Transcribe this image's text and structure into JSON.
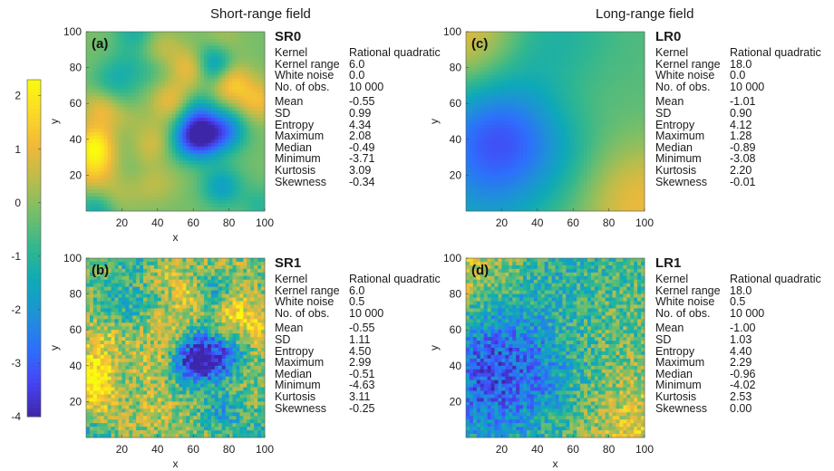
{
  "column_titles": {
    "left": "Short-range field",
    "right": "Long-range field"
  },
  "colormap": {
    "name": "parula",
    "stops": [
      "#3e26a8",
      "#4743f4",
      "#2d6ffc",
      "#1e91d7",
      "#0ea9b8",
      "#31b78f",
      "#73be6b",
      "#b7bd4c",
      "#f0b83a",
      "#fbd926",
      "#f9fb0e"
    ]
  },
  "chart_data": [
    {
      "type": "heatmap",
      "panel_label": "(a)",
      "code": "SR0",
      "xlabel": "x",
      "ylabel": "y",
      "xlim": [
        0,
        100
      ],
      "ylim": [
        0,
        100
      ],
      "xticks": [
        "20",
        "40",
        "60",
        "80",
        "100"
      ],
      "yticks": [
        "20",
        "40",
        "60",
        "80",
        "100"
      ],
      "stats": {
        "kernel": "Rational quadratic",
        "kernel_range": "6.0",
        "white_noise": "0.0",
        "n_obs": "10 000",
        "mean": "-0.55",
        "sd": "0.99",
        "entropy": "4.34",
        "maximum": "2.08",
        "median": "-0.49",
        "minimum": "-3.71",
        "kurtosis": "3.09",
        "skewness": "-0.34"
      }
    },
    {
      "type": "heatmap",
      "panel_label": "(b)",
      "code": "SR1",
      "xlabel": "x",
      "ylabel": "y",
      "xlim": [
        0,
        100
      ],
      "ylim": [
        0,
        100
      ],
      "xticks": [
        "20",
        "40",
        "60",
        "80",
        "100"
      ],
      "yticks": [
        "20",
        "40",
        "60",
        "80",
        "100"
      ],
      "stats": {
        "kernel": "Rational quadratic",
        "kernel_range": "6.0",
        "white_noise": "0.5",
        "n_obs": "10 000",
        "mean": "-0.55",
        "sd": "1.11",
        "entropy": "4.50",
        "maximum": "2.99",
        "median": "-0.51",
        "minimum": "-4.63",
        "kurtosis": "3.11",
        "skewness": "-0.25"
      }
    },
    {
      "type": "heatmap",
      "panel_label": "(c)",
      "code": "LR0",
      "xlabel": "",
      "ylabel": "y",
      "xlim": [
        0,
        100
      ],
      "ylim": [
        0,
        100
      ],
      "xticks": [
        "20",
        "40",
        "60",
        "80",
        "100"
      ],
      "yticks": [
        "20",
        "40",
        "60",
        "80",
        "100"
      ],
      "stats": {
        "kernel": "Rational quadratic",
        "kernel_range": "18.0",
        "white_noise": "0.0",
        "n_obs": "10 000",
        "mean": "-1.01",
        "sd": "0.90",
        "entropy": "4.12",
        "maximum": "1.28",
        "median": "-0.89",
        "minimum": "-3.08",
        "kurtosis": "2.20",
        "skewness": "-0.01"
      }
    },
    {
      "type": "heatmap",
      "panel_label": "(d)",
      "code": "LR1",
      "xlabel": "x",
      "ylabel": "y",
      "xlim": [
        0,
        100
      ],
      "ylim": [
        0,
        100
      ],
      "xticks": [
        "20",
        "40",
        "60",
        "80",
        "100"
      ],
      "yticks": [
        "20",
        "40",
        "60",
        "80",
        "100"
      ],
      "stats": {
        "kernel": "Rational quadratic",
        "kernel_range": "18.0",
        "white_noise": "0.5",
        "n_obs": "10 000",
        "mean": "-1.00",
        "sd": "1.03",
        "entropy": "4.40",
        "maximum": "2.29",
        "median": "-0.96",
        "minimum": "-4.02",
        "kurtosis": "2.53",
        "skewness": "0.00"
      }
    }
  ],
  "colorbar": {
    "range": [
      -4,
      2.3
    ],
    "ticks": [
      "2",
      "1",
      "0",
      "-1",
      "-2",
      "-3",
      "-4"
    ]
  },
  "stat_labels": {
    "kernel": "Kernel",
    "kernel_range": "Kernel range",
    "white_noise": "White noise",
    "n_obs": "No. of obs.",
    "mean": "Mean",
    "sd": "SD",
    "entropy": "Entropy",
    "maximum": "Maximum",
    "median": "Median",
    "minimum": "Minimum",
    "kurtosis": "Kurtosis",
    "skewness": "Skewness"
  }
}
